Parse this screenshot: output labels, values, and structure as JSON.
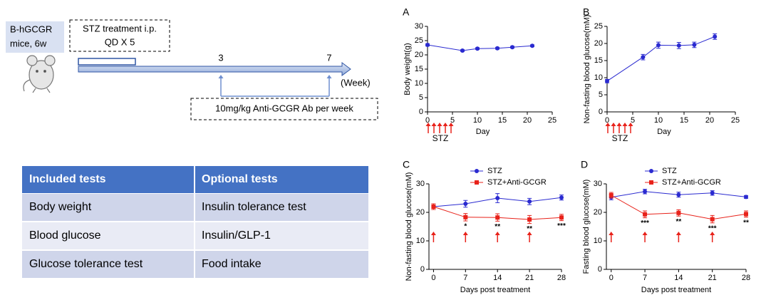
{
  "diagram": {
    "mouse_label": [
      "B-hGCGR",
      "mice, 6w"
    ],
    "stz_box": [
      "STZ treatment i.p.",
      "QD X 5"
    ],
    "week_ticks": [
      3,
      7
    ],
    "axis_unit": "(Week)",
    "antibody_box": "10mg/kg Anti-GCGR Ab per week"
  },
  "table": {
    "header": [
      "Included tests",
      "Optional tests"
    ],
    "rows": [
      [
        "Body weight",
        "Insulin tolerance test"
      ],
      [
        "Blood glucose",
        "Insulin/GLP-1"
      ],
      [
        "Glucose tolerance test",
        "Food intake"
      ]
    ]
  },
  "chart_data": [
    {
      "type": "line",
      "panel": "A",
      "ylabel": "Body weight(g)",
      "xlabel": "Day",
      "annotation": "STZ",
      "xlim": [
        0,
        25
      ],
      "xticks": [
        0,
        5,
        10,
        15,
        20,
        25
      ],
      "ylim": [
        0,
        30
      ],
      "yticks": [
        0,
        5,
        10,
        15,
        20,
        25,
        30
      ],
      "x": [
        0,
        7,
        10,
        14,
        17,
        21
      ],
      "series": [
        {
          "color": "#2a2ad0",
          "values": [
            23.5,
            21.5,
            22.2,
            22.3,
            22.7,
            23.2
          ],
          "errors": [
            0.4,
            0.3,
            0.3,
            0.3,
            0.3,
            0.3
          ]
        }
      ]
    },
    {
      "type": "line",
      "panel": "B",
      "ylabel": "Non-fasting blood glucose(mM)",
      "xlabel": "Day",
      "annotation": "STZ",
      "xlim": [
        0,
        25
      ],
      "xticks": [
        0,
        5,
        10,
        15,
        20,
        25
      ],
      "ylim": [
        0,
        25
      ],
      "yticks": [
        0,
        5,
        10,
        15,
        20,
        25
      ],
      "x": [
        0,
        7,
        10,
        14,
        17,
        21
      ],
      "series": [
        {
          "color": "#2a2ad0",
          "values": [
            9,
            16,
            19.5,
            19.4,
            19.6,
            22
          ],
          "errors": [
            0.5,
            0.8,
            0.9,
            0.9,
            0.8,
            0.8
          ]
        }
      ]
    },
    {
      "type": "line",
      "panel": "C",
      "ylabel": "Non-fasting blood glucose(mM)",
      "xlabel": "Days post treatment",
      "xlim": [
        -1,
        28
      ],
      "xticks": [
        0,
        7,
        14,
        21,
        28
      ],
      "ylim": [
        0,
        30
      ],
      "yticks": [
        0,
        10,
        20,
        30
      ],
      "x": [
        0,
        7,
        14,
        21,
        28
      ],
      "series": [
        {
          "name": "STZ",
          "color": "#2a2ad0",
          "values": [
            22,
            23,
            25,
            23.8,
            25.2
          ],
          "errors": [
            1,
            1.2,
            1.6,
            1.1,
            0.9
          ]
        },
        {
          "name": "STZ+Anti-GCGR",
          "color": "#e8221a",
          "values": [
            22,
            18.3,
            18.2,
            17.5,
            18.2
          ],
          "errors": [
            1,
            1.3,
            1.3,
            1.4,
            1.1
          ],
          "significance": [
            null,
            "*",
            "**",
            "**",
            "***"
          ]
        }
      ]
    },
    {
      "type": "line",
      "panel": "D",
      "ylabel": "Fasting blood glucose(mM)",
      "xlabel": "Days post treatment",
      "xlim": [
        -1,
        28
      ],
      "xticks": [
        0,
        7,
        14,
        21,
        28
      ],
      "ylim": [
        0,
        30
      ],
      "yticks": [
        0,
        10,
        20,
        30
      ],
      "x": [
        0,
        7,
        14,
        21,
        28
      ],
      "series": [
        {
          "name": "STZ",
          "color": "#2a2ad0",
          "values": [
            25.3,
            27.3,
            26.2,
            26.8,
            25.4
          ],
          "errors": [
            0.9,
            0.8,
            0.9,
            0.8,
            0.5
          ],
          "significance": null
        },
        {
          "name": "STZ+Anti-GCGR",
          "color": "#e8221a",
          "values": [
            26,
            19.3,
            19.8,
            17.6,
            19.4
          ],
          "errors": [
            1,
            1.2,
            1.1,
            1.3,
            1.1
          ],
          "significance": [
            null,
            "***",
            "**",
            "***",
            "**"
          ]
        }
      ]
    }
  ]
}
